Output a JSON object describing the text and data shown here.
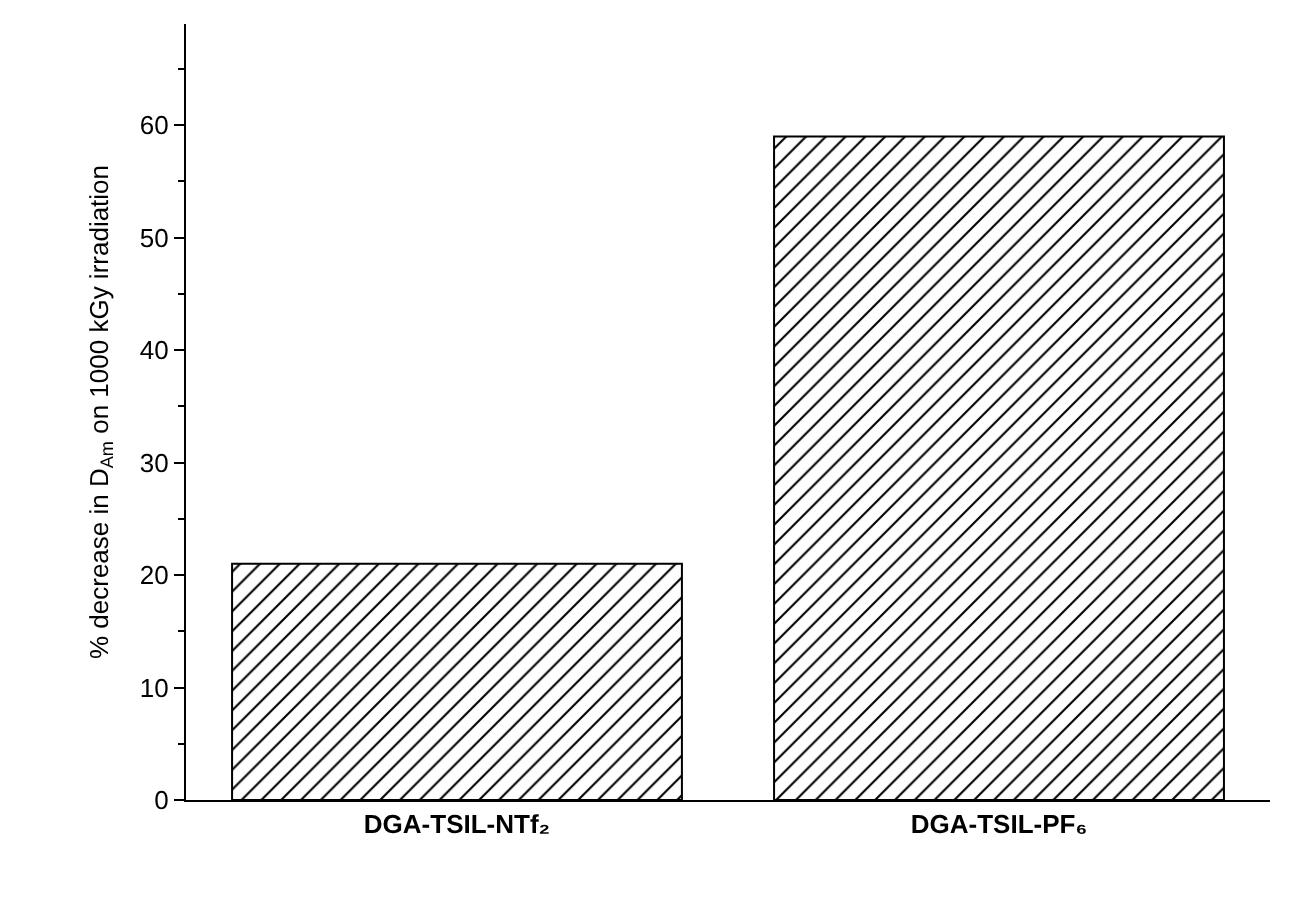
{
  "chart_data": {
    "type": "bar",
    "ylabel": "% decrease in D$_{Am}$ on 1000 kGy irradiation",
    "categories": [
      "DGA-TSIL-NTf₂",
      "DGA-TSIL-PF₆"
    ],
    "values": [
      21,
      59
    ],
    "color": "#000000",
    "ylim": [
      0,
      69
    ],
    "yticks": [
      0,
      10,
      20,
      30,
      40,
      50,
      60
    ]
  }
}
